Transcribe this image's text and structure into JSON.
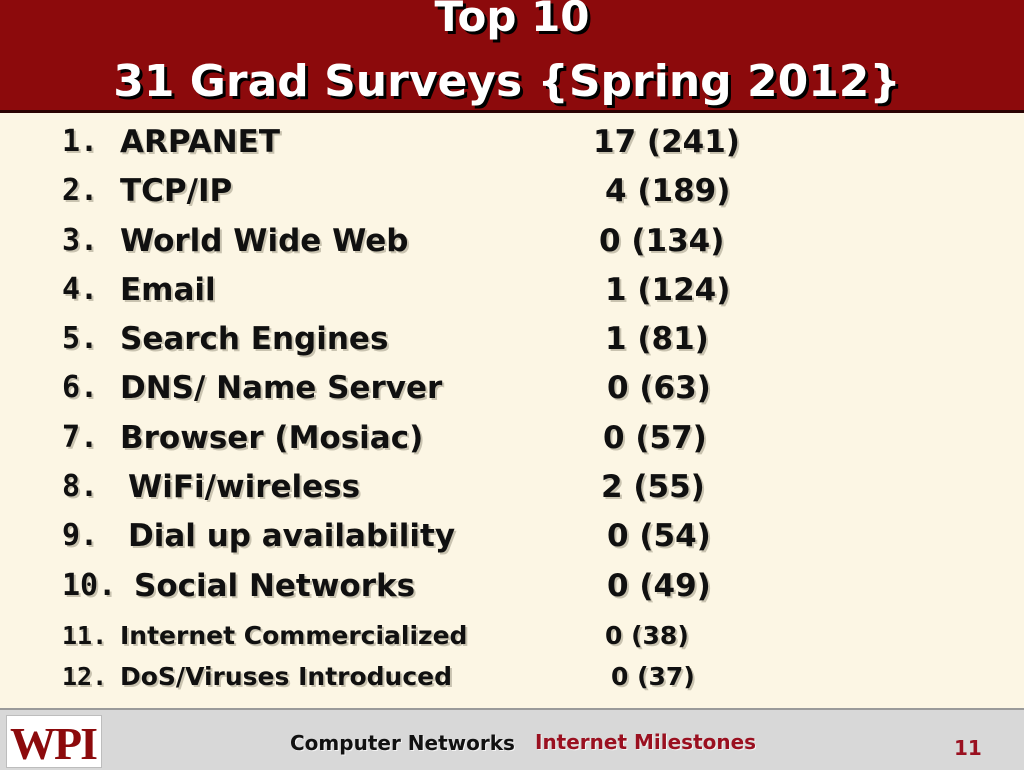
{
  "header": {
    "title_line1": "Top 10",
    "title_line2": "31 Grad  Surveys {Spring 2012}"
  },
  "items": [
    {
      "num": "1.",
      "name": "ARPANET",
      "value": "17 (241)"
    },
    {
      "num": "2.",
      "name": "TCP/IP",
      "value": "4 (189)"
    },
    {
      "num": "3.",
      "name": "World Wide Web",
      "value": "0 (134)"
    },
    {
      "num": "4.",
      "name": "Email",
      "value": "1 (124)"
    },
    {
      "num": "5.",
      "name": "Search Engines",
      "value": "1 (81)"
    },
    {
      "num": "6.",
      "name": "DNS/ Name Server",
      "value": "0 (63)"
    },
    {
      "num": "7.",
      "name": "Browser (Mosiac)",
      "value": "0 (57)"
    },
    {
      "num": "8.",
      "name": "WiFi/wireless",
      "value": "2 (55)"
    },
    {
      "num": "9.",
      "name": "Dial up availability",
      "value": "0 (54)"
    },
    {
      "num": "10.",
      "name": "Social Networks",
      "value": "0 (49)"
    },
    {
      "num": "11.",
      "name": "Internet Commercialized",
      "value": "0 (38)"
    },
    {
      "num": "12.",
      "name": "DoS/Viruses Introduced",
      "value": "0 (37)"
    }
  ],
  "footer": {
    "logo_text": "WPI",
    "course": "Computer Networks",
    "topic": "Internet Milestones",
    "page_number": "11"
  },
  "colors": {
    "header_bg": "#8c0a0c",
    "slide_bg": "#fcf6e4",
    "footer_bg": "#d8d8d8",
    "accent_red": "#9a1020"
  }
}
